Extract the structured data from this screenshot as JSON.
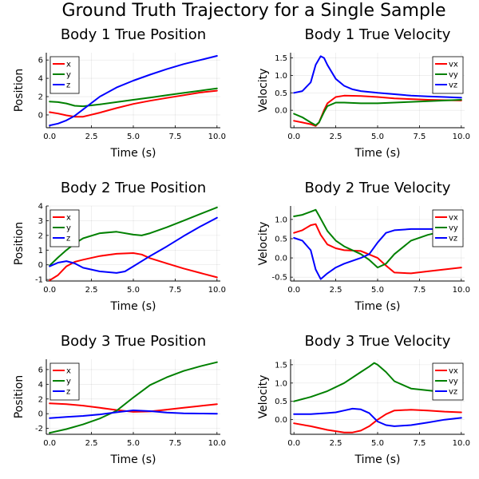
{
  "figure": {
    "title": "Ground Truth Trajectory for a Single Sample"
  },
  "colors": {
    "x": "#ff0000",
    "y": "#008000",
    "z": "#0000ff"
  },
  "chart_data": [
    {
      "type": "line",
      "title": "Body 1 True Position",
      "xlabel": "Time (s)",
      "ylabel": "Position",
      "xlim": [
        -0.2,
        10.2
      ],
      "ylim": [
        -1.4,
        6.8
      ],
      "xticks": [
        0,
        2.5,
        5,
        7.5,
        10
      ],
      "xtick_labels": [
        "0.0",
        "2.5",
        "5.0",
        "7.5",
        "10.0"
      ],
      "yticks": [
        0,
        2,
        4,
        6
      ],
      "ytick_labels": [
        "0",
        "2",
        "4",
        "6"
      ],
      "grid": true,
      "legend": "top-left",
      "series": [
        {
          "name": "x",
          "x": [
            0,
            0.5,
            1,
            1.5,
            2,
            3,
            4,
            5,
            6,
            7,
            8,
            9,
            10
          ],
          "y": [
            0.3,
            0.15,
            -0.05,
            -0.2,
            -0.2,
            0.25,
            0.75,
            1.2,
            1.55,
            1.85,
            2.15,
            2.45,
            2.65
          ]
        },
        {
          "name": "y",
          "x": [
            0,
            0.5,
            1,
            1.5,
            2,
            3,
            4,
            5,
            6,
            7,
            8,
            9,
            10
          ],
          "y": [
            1.45,
            1.4,
            1.25,
            1.0,
            0.95,
            1.15,
            1.4,
            1.65,
            1.9,
            2.15,
            2.4,
            2.65,
            2.9
          ]
        },
        {
          "name": "z",
          "x": [
            0,
            0.5,
            1,
            1.5,
            2,
            2.5,
            3,
            4,
            5,
            6,
            7,
            8,
            9,
            10
          ],
          "y": [
            -1.15,
            -0.95,
            -0.6,
            -0.1,
            0.6,
            1.3,
            2.0,
            3.0,
            3.75,
            4.4,
            5.0,
            5.55,
            6.0,
            6.45
          ]
        }
      ]
    },
    {
      "type": "line",
      "title": "Body 1 True Velocity",
      "xlabel": "Time (s)",
      "ylabel": "Velocity",
      "xlim": [
        -0.2,
        10.2
      ],
      "ylim": [
        -0.5,
        1.65
      ],
      "xticks": [
        0,
        2.5,
        5,
        7.5,
        10
      ],
      "xtick_labels": [
        "0.0",
        "2.5",
        "5.0",
        "7.5",
        "10.0"
      ],
      "yticks": [
        0,
        0.5,
        1.0,
        1.5
      ],
      "ytick_labels": [
        "0.0",
        "0.5",
        "1.0",
        "1.5"
      ],
      "grid": true,
      "legend": "top-right",
      "series": [
        {
          "name": "vx",
          "x": [
            0,
            0.5,
            1,
            1.3,
            1.5,
            1.8,
            2,
            2.5,
            3,
            4,
            5,
            6,
            7,
            8,
            9,
            10
          ],
          "y": [
            -0.3,
            -0.35,
            -0.4,
            -0.45,
            -0.35,
            0.0,
            0.2,
            0.38,
            0.42,
            0.41,
            0.38,
            0.34,
            0.32,
            0.3,
            0.29,
            0.28
          ]
        },
        {
          "name": "vy",
          "x": [
            0,
            0.5,
            1,
            1.3,
            1.5,
            1.8,
            2,
            2.5,
            3,
            4,
            5,
            6,
            7,
            8,
            9,
            10
          ],
          "y": [
            -0.1,
            -0.2,
            -0.35,
            -0.43,
            -0.35,
            -0.05,
            0.12,
            0.22,
            0.22,
            0.2,
            0.2,
            0.22,
            0.24,
            0.26,
            0.28,
            0.3
          ]
        },
        {
          "name": "vz",
          "x": [
            0,
            0.5,
            1,
            1.3,
            1.6,
            1.8,
            2,
            2.5,
            3,
            3.5,
            4,
            5,
            6,
            7,
            8,
            9,
            10
          ],
          "y": [
            0.5,
            0.55,
            0.8,
            1.3,
            1.55,
            1.5,
            1.3,
            0.9,
            0.7,
            0.6,
            0.55,
            0.5,
            0.46,
            0.42,
            0.4,
            0.38,
            0.36
          ]
        }
      ]
    },
    {
      "type": "line",
      "title": "Body 2 True Position",
      "xlabel": "Time (s)",
      "ylabel": "Position",
      "xlim": [
        -0.2,
        10.2
      ],
      "ylim": [
        -1.1,
        4.0
      ],
      "xticks": [
        0,
        2.5,
        5,
        7.5,
        10
      ],
      "xtick_labels": [
        "0.0",
        "2.5",
        "5.0",
        "7.5",
        "10.0"
      ],
      "yticks": [
        -1,
        0,
        1,
        2,
        3,
        4
      ],
      "ytick_labels": [
        "-1",
        "0",
        "1",
        "2",
        "3",
        "4"
      ],
      "grid": true,
      "legend": "top-left",
      "series": [
        {
          "name": "x",
          "x": [
            0,
            0.5,
            1,
            1.5,
            2,
            3,
            4,
            5,
            5.5,
            6,
            7,
            8,
            9,
            10
          ],
          "y": [
            -1.05,
            -0.7,
            -0.1,
            0.2,
            0.35,
            0.6,
            0.75,
            0.8,
            0.7,
            0.45,
            0.1,
            -0.25,
            -0.55,
            -0.85
          ]
        },
        {
          "name": "y",
          "x": [
            0,
            0.5,
            1,
            1.5,
            2,
            3,
            4,
            5,
            5.5,
            6,
            7,
            8,
            9,
            10
          ],
          "y": [
            -0.05,
            0.5,
            1.0,
            1.45,
            1.8,
            2.15,
            2.25,
            2.05,
            2.0,
            2.15,
            2.55,
            3.0,
            3.45,
            3.9
          ]
        },
        {
          "name": "z",
          "x": [
            0,
            0.5,
            1,
            1.5,
            2,
            3,
            4,
            4.5,
            5,
            6,
            7,
            8,
            9,
            10
          ],
          "y": [
            -0.1,
            0.15,
            0.25,
            0.1,
            -0.2,
            -0.45,
            -0.55,
            -0.45,
            -0.1,
            0.6,
            1.25,
            1.95,
            2.6,
            3.2
          ]
        }
      ]
    },
    {
      "type": "line",
      "title": "Body 2 True Velocity",
      "xlabel": "Time (s)",
      "ylabel": "Velocity",
      "xlim": [
        -0.2,
        10.2
      ],
      "ylim": [
        -0.6,
        1.35
      ],
      "xticks": [
        0,
        2.5,
        5,
        7.5,
        10
      ],
      "xtick_labels": [
        "0.0",
        "2.5",
        "5.0",
        "7.5",
        "10.0"
      ],
      "yticks": [
        -0.5,
        0,
        0.5,
        1.0
      ],
      "ytick_labels": [
        "-0.5",
        "0.0",
        "0.5",
        "1.0"
      ],
      "grid": true,
      "legend": "top-right",
      "series": [
        {
          "name": "vx",
          "x": [
            0,
            0.5,
            1,
            1.3,
            1.6,
            2,
            2.5,
            3,
            4,
            5,
            5.5,
            6,
            7,
            8,
            9,
            10
          ],
          "y": [
            0.65,
            0.72,
            0.85,
            0.88,
            0.6,
            0.35,
            0.25,
            0.2,
            0.18,
            0.0,
            -0.2,
            -0.38,
            -0.4,
            -0.35,
            -0.3,
            -0.25
          ]
        },
        {
          "name": "vy",
          "x": [
            0,
            0.5,
            1,
            1.3,
            1.5,
            2,
            2.5,
            3,
            4,
            4.5,
            5,
            5.5,
            6,
            7,
            8,
            9,
            10
          ],
          "y": [
            1.08,
            1.12,
            1.2,
            1.25,
            1.1,
            0.7,
            0.45,
            0.3,
            0.1,
            -0.05,
            -0.25,
            -0.15,
            0.1,
            0.45,
            0.6,
            0.7,
            0.75
          ]
        },
        {
          "name": "vz",
          "x": [
            0,
            0.5,
            1,
            1.3,
            1.6,
            2,
            2.5,
            3,
            4,
            4.5,
            5,
            5.5,
            6,
            7,
            8,
            9,
            10
          ],
          "y": [
            0.52,
            0.45,
            0.2,
            -0.3,
            -0.55,
            -0.4,
            -0.25,
            -0.15,
            0.0,
            0.1,
            0.4,
            0.65,
            0.72,
            0.75,
            0.75,
            0.75,
            0.75
          ]
        }
      ]
    },
    {
      "type": "line",
      "title": "Body 3 True Position",
      "xlabel": "Time (s)",
      "ylabel": "Position",
      "xlim": [
        -0.2,
        10.2
      ],
      "ylim": [
        -2.8,
        7.4
      ],
      "xticks": [
        0,
        2.5,
        5,
        7.5,
        10
      ],
      "xtick_labels": [
        "0.0",
        "2.5",
        "5.0",
        "7.5",
        "10.0"
      ],
      "yticks": [
        -2,
        0,
        2,
        4,
        6
      ],
      "ytick_labels": [
        "-2",
        "0",
        "2",
        "4",
        "6"
      ],
      "grid": true,
      "legend": "top-left",
      "series": [
        {
          "name": "x",
          "x": [
            0,
            1,
            2,
            3,
            4,
            5,
            6,
            7,
            8,
            9,
            10
          ],
          "y": [
            1.4,
            1.3,
            1.1,
            0.8,
            0.5,
            0.25,
            0.3,
            0.55,
            0.8,
            1.05,
            1.3
          ]
        },
        {
          "name": "y",
          "x": [
            0,
            1,
            2,
            3,
            4,
            5,
            6,
            7,
            8,
            9,
            10
          ],
          "y": [
            -2.6,
            -2.1,
            -1.45,
            -0.65,
            0.4,
            2.2,
            3.9,
            4.95,
            5.8,
            6.45,
            7.0
          ]
        },
        {
          "name": "z",
          "x": [
            0,
            1,
            2,
            3,
            4,
            5,
            6,
            7,
            8,
            9,
            10
          ],
          "y": [
            -0.6,
            -0.45,
            -0.3,
            -0.1,
            0.2,
            0.45,
            0.35,
            0.15,
            0.05,
            0.02,
            0.0
          ]
        }
      ]
    },
    {
      "type": "line",
      "title": "Body 3 True Velocity",
      "xlabel": "Time (s)",
      "ylabel": "Velocity",
      "xlim": [
        -0.2,
        10.2
      ],
      "ylim": [
        -0.4,
        1.65
      ],
      "xticks": [
        0,
        2.5,
        5,
        7.5,
        10
      ],
      "xtick_labels": [
        "0.0",
        "2.5",
        "5.0",
        "7.5",
        "10.0"
      ],
      "yticks": [
        0,
        0.5,
        1.0,
        1.5
      ],
      "ytick_labels": [
        "0.0",
        "0.5",
        "1.0",
        "1.5"
      ],
      "grid": true,
      "legend": "top-right",
      "series": [
        {
          "name": "vx",
          "x": [
            0,
            1,
            2,
            3,
            3.5,
            4,
            4.5,
            5,
            5.5,
            6,
            7,
            8,
            9,
            10
          ],
          "y": [
            -0.1,
            -0.18,
            -0.28,
            -0.35,
            -0.35,
            -0.3,
            -0.18,
            0.0,
            0.15,
            0.25,
            0.27,
            0.25,
            0.22,
            0.2
          ]
        },
        {
          "name": "vy",
          "x": [
            0,
            1,
            2,
            3,
            4,
            4.5,
            4.8,
            5,
            5.5,
            6,
            7,
            8,
            9,
            10
          ],
          "y": [
            0.5,
            0.62,
            0.78,
            1.0,
            1.3,
            1.45,
            1.55,
            1.5,
            1.3,
            1.05,
            0.85,
            0.8,
            0.75,
            0.72
          ]
        },
        {
          "name": "vz",
          "x": [
            0,
            1,
            2,
            2.5,
            3,
            3.5,
            4,
            4.5,
            5,
            5.5,
            6,
            7,
            8,
            9,
            10
          ],
          "y": [
            0.15,
            0.15,
            0.18,
            0.2,
            0.25,
            0.3,
            0.28,
            0.18,
            -0.05,
            -0.15,
            -0.18,
            -0.15,
            -0.08,
            0.0,
            0.05
          ]
        }
      ]
    }
  ]
}
